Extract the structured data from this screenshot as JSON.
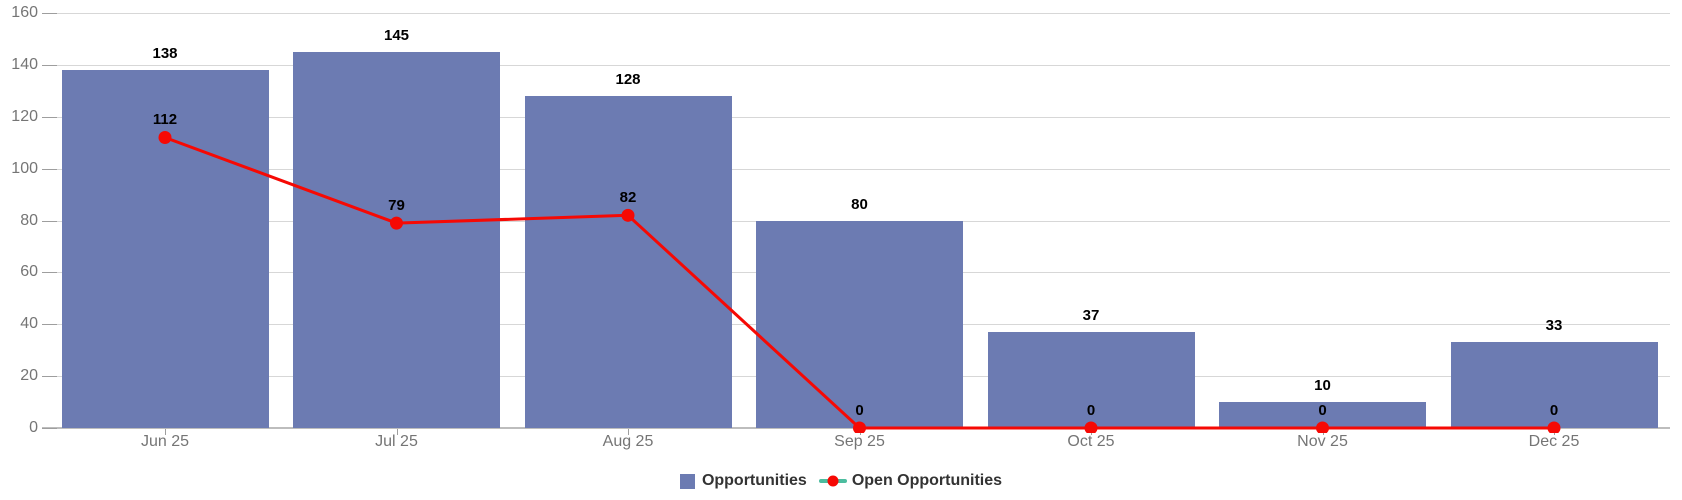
{
  "chart_data": {
    "type": "bar",
    "subtype": "bar-line-combo",
    "categories": [
      "Jun 25",
      "Jul 25",
      "Aug 25",
      "Sep 25",
      "Oct 25",
      "Nov 25",
      "Dec 25"
    ],
    "series": [
      {
        "name": "Opportunities",
        "type": "bar",
        "color": "#6c7bb2",
        "values": [
          138,
          145,
          128,
          80,
          37,
          10,
          33
        ]
      },
      {
        "name": "Open Opportunities",
        "type": "line",
        "color": "#f60904",
        "marker_color": "#f60904",
        "legend_line_color": "#4cbd9f",
        "values": [
          112,
          79,
          82,
          0,
          0,
          0,
          0
        ]
      }
    ],
    "title": "",
    "xlabel": "",
    "ylabel": "",
    "ylim": [
      0,
      160
    ],
    "yticks": [
      0,
      20,
      40,
      60,
      80,
      100,
      120,
      140,
      160
    ],
    "grid": true,
    "data_labels": true,
    "legend_position": "bottom-center",
    "axis_label_color": "#757575",
    "value_label_color": "#000000",
    "grid_color": "#d7d7d7"
  }
}
